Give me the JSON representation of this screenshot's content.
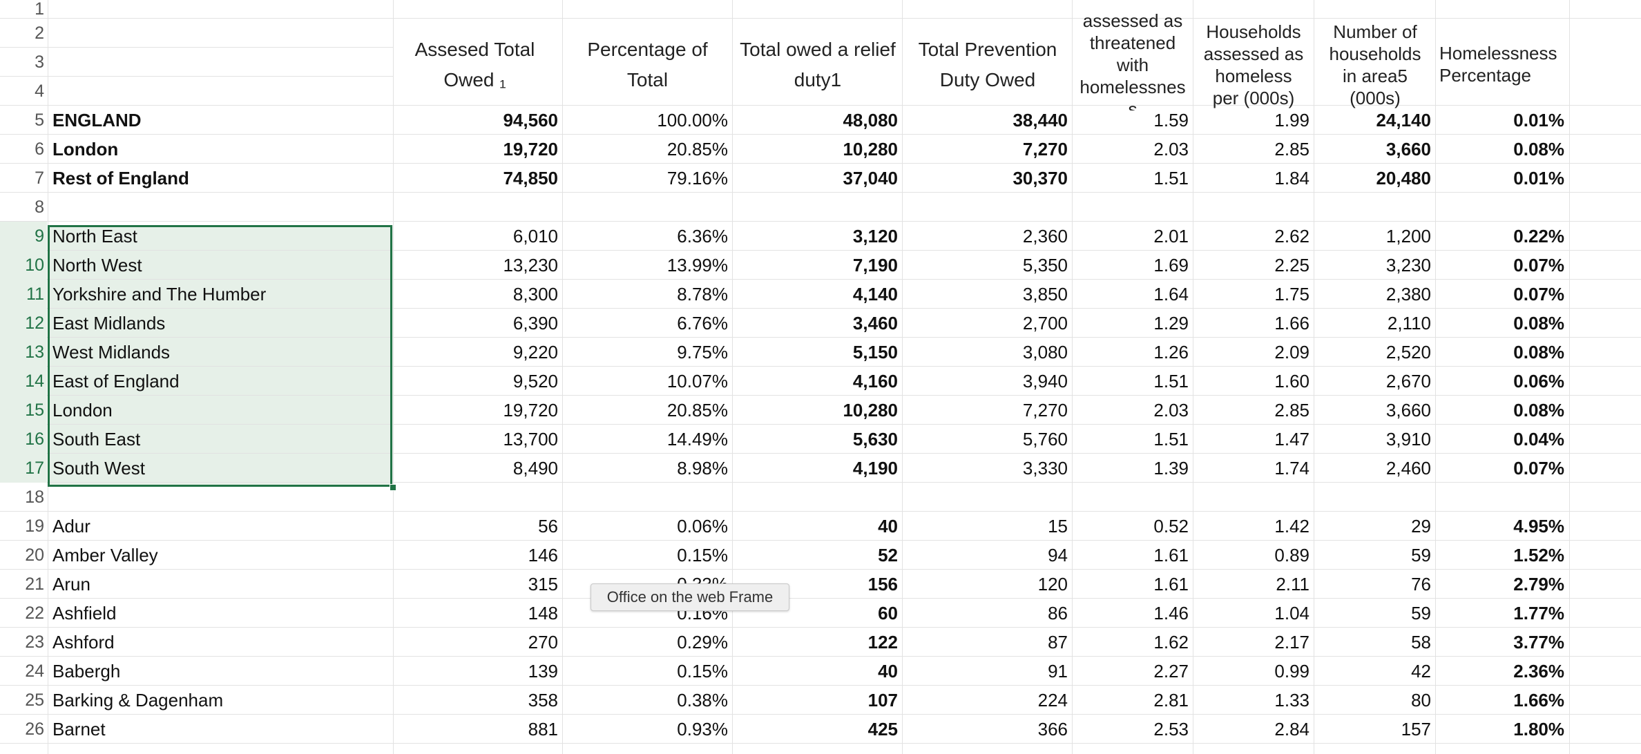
{
  "sheet": {
    "headers": {
      "assessed_total_owed": [
        "Assesed Total",
        "Owed ₁"
      ],
      "percentage_of_total": [
        "Percentage of",
        "Total"
      ],
      "total_owed_relief": [
        "Total owed a relief",
        "duty1"
      ],
      "total_prevention": [
        "Total Prevention",
        "Duty Owed"
      ],
      "threatened": [
        "assessed as",
        "threatened",
        "with",
        "homelessnes",
        "s"
      ],
      "homeless_per": [
        "Households",
        "assessed as",
        "homeless",
        "per (000s)"
      ],
      "households_area": [
        "Number of",
        "households",
        "in area5",
        "(000s)"
      ],
      "homelessness_pct": [
        "Homelessness",
        "Percentage"
      ]
    },
    "row_numbers": [
      "1",
      "2",
      "3",
      "4",
      "5",
      "6",
      "7",
      "8",
      "9",
      "10",
      "11",
      "12",
      "13",
      "14",
      "15",
      "16",
      "17",
      "18",
      "19",
      "20",
      "21",
      "22",
      "23",
      "24",
      "25",
      "26"
    ],
    "rows": [
      {
        "row": 5,
        "bold_name": true,
        "name": "ENGLAND",
        "v": [
          "94,560",
          "100.00%",
          "48,080",
          "38,440",
          "1.59",
          "1.99",
          "24,140",
          "0.01%"
        ]
      },
      {
        "row": 6,
        "bold_name": true,
        "name": "London",
        "v": [
          "19,720",
          "20.85%",
          "10,280",
          "7,270",
          "2.03",
          "2.85",
          "3,660",
          "0.08%"
        ]
      },
      {
        "row": 7,
        "bold_name": true,
        "name": "Rest of England",
        "v": [
          "74,850",
          "79.16%",
          "37,040",
          "30,370",
          "1.51",
          "1.84",
          "20,480",
          "0.01%"
        ]
      },
      {
        "row": 9,
        "bold_name": false,
        "name": "North East",
        "v": [
          "6,010",
          "6.36%",
          "3,120",
          "2,360",
          "2.01",
          "2.62",
          "1,200",
          "0.22%"
        ]
      },
      {
        "row": 10,
        "bold_name": false,
        "name": "North West",
        "v": [
          "13,230",
          "13.99%",
          "7,190",
          "5,350",
          "1.69",
          "2.25",
          "3,230",
          "0.07%"
        ]
      },
      {
        "row": 11,
        "bold_name": false,
        "name": "Yorkshire and The Humber",
        "v": [
          "8,300",
          "8.78%",
          "4,140",
          "3,850",
          "1.64",
          "1.75",
          "2,380",
          "0.07%"
        ]
      },
      {
        "row": 12,
        "bold_name": false,
        "name": "East Midlands",
        "v": [
          "6,390",
          "6.76%",
          "3,460",
          "2,700",
          "1.29",
          "1.66",
          "2,110",
          "0.08%"
        ]
      },
      {
        "row": 13,
        "bold_name": false,
        "name": "West Midlands",
        "v": [
          "9,220",
          "9.75%",
          "5,150",
          "3,080",
          "1.26",
          "2.09",
          "2,520",
          "0.08%"
        ]
      },
      {
        "row": 14,
        "bold_name": false,
        "name": "East of England",
        "v": [
          "9,520",
          "10.07%",
          "4,160",
          "3,940",
          "1.51",
          "1.60",
          "2,670",
          "0.06%"
        ]
      },
      {
        "row": 15,
        "bold_name": false,
        "name": "London",
        "v": [
          "19,720",
          "20.85%",
          "10,280",
          "7,270",
          "2.03",
          "2.85",
          "3,660",
          "0.08%"
        ]
      },
      {
        "row": 16,
        "bold_name": false,
        "name": "South East",
        "v": [
          "13,700",
          "14.49%",
          "5,630",
          "5,760",
          "1.51",
          "1.47",
          "3,910",
          "0.04%"
        ]
      },
      {
        "row": 17,
        "bold_name": false,
        "name": "South West",
        "v": [
          "8,490",
          "8.98%",
          "4,190",
          "3,330",
          "1.39",
          "1.74",
          "2,460",
          "0.07%"
        ]
      },
      {
        "row": 19,
        "bold_name": false,
        "name": "Adur",
        "v": [
          "56",
          "0.06%",
          "40",
          "15",
          "0.52",
          "1.42",
          "29",
          "4.95%"
        ]
      },
      {
        "row": 20,
        "bold_name": false,
        "name": "Amber Valley",
        "v": [
          "146",
          "0.15%",
          "52",
          "94",
          "1.61",
          "0.89",
          "59",
          "1.52%"
        ]
      },
      {
        "row": 21,
        "bold_name": false,
        "name": "Arun",
        "v": [
          "315",
          "0.33%",
          "156",
          "120",
          "1.61",
          "2.11",
          "76",
          "2.79%"
        ]
      },
      {
        "row": 22,
        "bold_name": false,
        "name": "Ashfield",
        "v": [
          "148",
          "0.16%",
          "60",
          "86",
          "1.46",
          "1.04",
          "59",
          "1.77%"
        ]
      },
      {
        "row": 23,
        "bold_name": false,
        "name": "Ashford",
        "v": [
          "270",
          "0.29%",
          "122",
          "87",
          "1.62",
          "2.17",
          "58",
          "3.77%"
        ]
      },
      {
        "row": 24,
        "bold_name": false,
        "name": "Babergh",
        "v": [
          "139",
          "0.15%",
          "40",
          "91",
          "2.27",
          "0.99",
          "42",
          "2.36%"
        ]
      },
      {
        "row": 25,
        "bold_name": false,
        "name": "Barking & Dagenham",
        "v": [
          "358",
          "0.38%",
          "107",
          "224",
          "2.81",
          "1.33",
          "80",
          "1.66%"
        ]
      },
      {
        "row": 26,
        "bold_name": false,
        "name": "Barnet",
        "v": [
          "881",
          "0.93%",
          "425",
          "366",
          "2.53",
          "2.84",
          "157",
          "1.80%"
        ]
      }
    ],
    "bold_value_columns": [
      2,
      7
    ],
    "selected_rows": [
      9,
      17
    ],
    "tooltip": "Office on the web Frame"
  }
}
